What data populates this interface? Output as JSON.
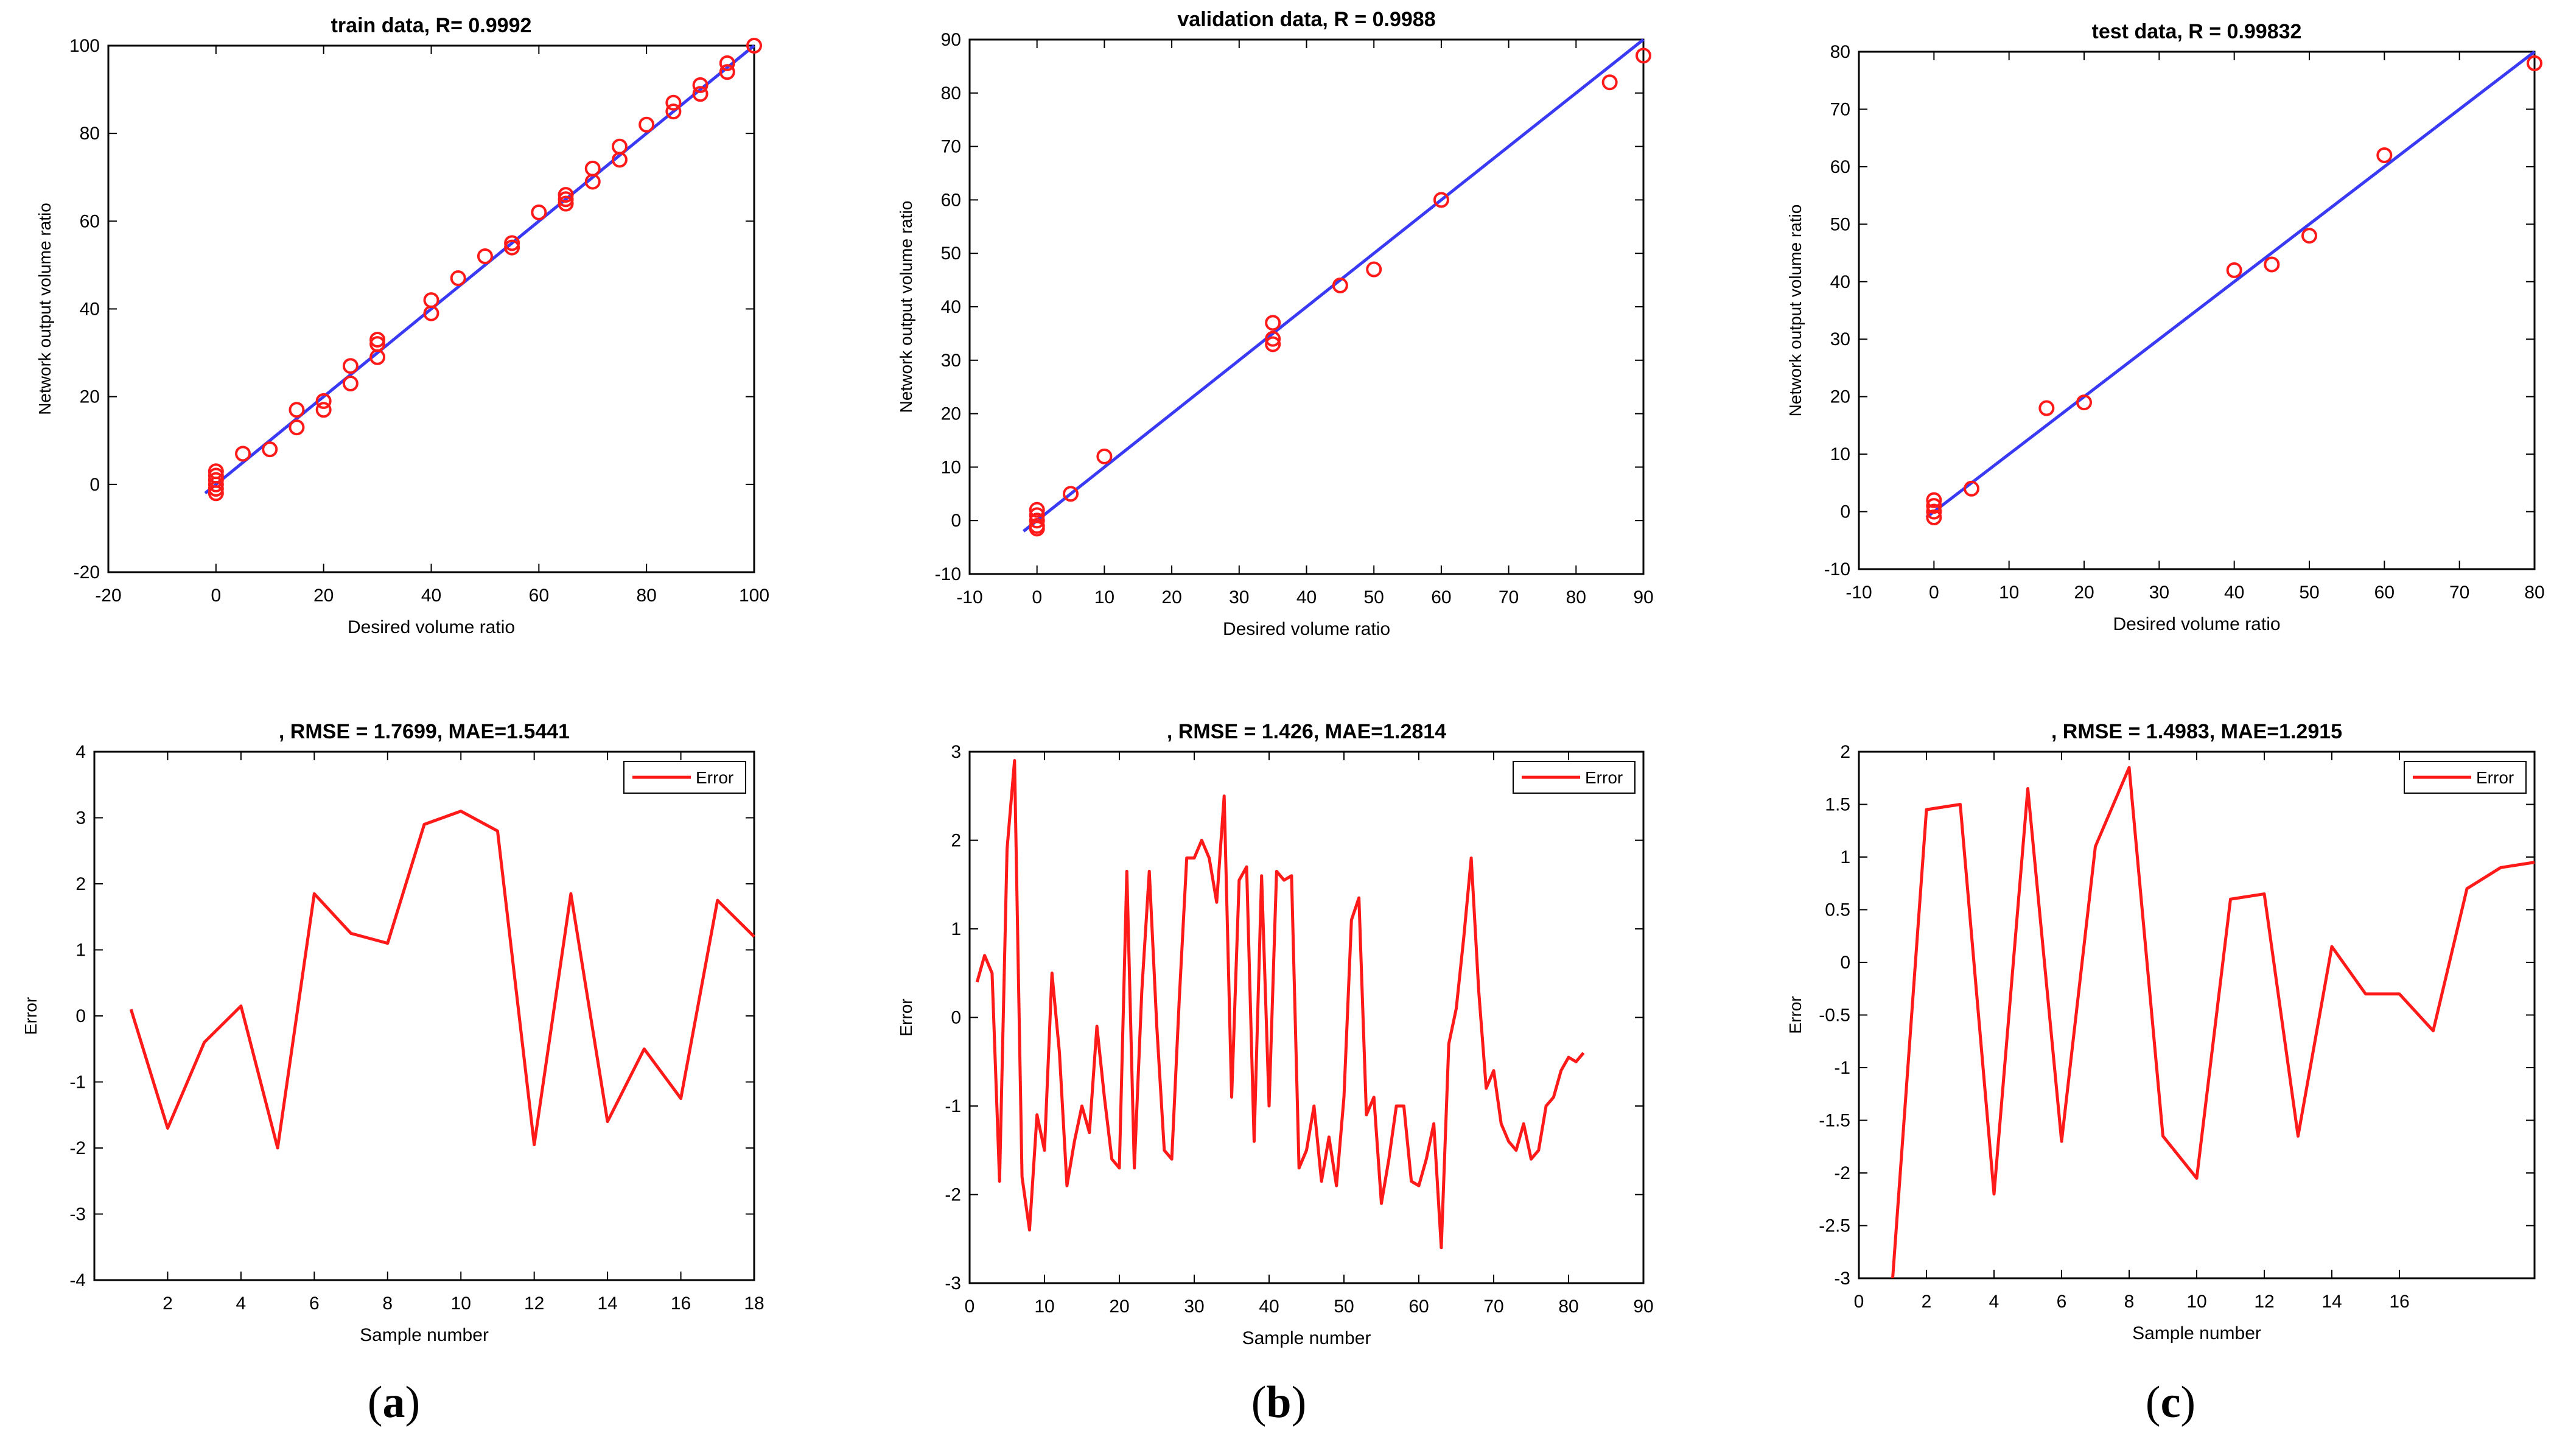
{
  "colors": {
    "fit_line": "#3a3af5",
    "points": "#ff1a1a",
    "error_line": "#ff1a1a",
    "axis": "#000000"
  },
  "panel_labels": [
    "a",
    "b",
    "c"
  ],
  "chart_data": [
    {
      "type": "scatter",
      "panel": "a-top",
      "title": "train data,  R= 0.9992",
      "xlabel": "Desired volume ratio",
      "ylabel": "Network output volume ratio",
      "xlim": [
        -20,
        100
      ],
      "ylim": [
        -20,
        100
      ],
      "xticks": [
        -20,
        0,
        20,
        40,
        60,
        80,
        100
      ],
      "yticks": [
        -20,
        0,
        20,
        40,
        60,
        80,
        100
      ],
      "fit_line": {
        "x": [
          -2,
          100
        ],
        "y": [
          -2,
          100
        ]
      },
      "points": [
        [
          0,
          -1
        ],
        [
          0,
          0
        ],
        [
          0,
          1
        ],
        [
          0,
          2
        ],
        [
          0,
          3
        ],
        [
          0,
          -2
        ],
        [
          5,
          7
        ],
        [
          10,
          8
        ],
        [
          15,
          13
        ],
        [
          15,
          17
        ],
        [
          20,
          17
        ],
        [
          20,
          19
        ],
        [
          25,
          23
        ],
        [
          25,
          27
        ],
        [
          30,
          29
        ],
        [
          30,
          32
        ],
        [
          30,
          33
        ],
        [
          40,
          39
        ],
        [
          40,
          42
        ],
        [
          45,
          47
        ],
        [
          50,
          52
        ],
        [
          55,
          54
        ],
        [
          55,
          55
        ],
        [
          60,
          62
        ],
        [
          65,
          64
        ],
        [
          65,
          65
        ],
        [
          65,
          66
        ],
        [
          70,
          69
        ],
        [
          70,
          72
        ],
        [
          75,
          74
        ],
        [
          75,
          77
        ],
        [
          80,
          82
        ],
        [
          85,
          85
        ],
        [
          85,
          87
        ],
        [
          90,
          89
        ],
        [
          90,
          91
        ],
        [
          95,
          94
        ],
        [
          95,
          96
        ],
        [
          100,
          100
        ]
      ]
    },
    {
      "type": "scatter",
      "panel": "b-top",
      "title": "validation data,  R = 0.9988",
      "xlabel": "Desired volume ratio",
      "ylabel": "Network output volume ratio",
      "xlim": [
        -10,
        90
      ],
      "ylim": [
        -10,
        90
      ],
      "xticks": [
        -10,
        0,
        10,
        20,
        30,
        40,
        50,
        60,
        70,
        80,
        90
      ],
      "yticks": [
        -10,
        0,
        10,
        20,
        30,
        40,
        50,
        60,
        70,
        80,
        90
      ],
      "fit_line": {
        "x": [
          -2,
          90
        ],
        "y": [
          -2,
          90
        ]
      },
      "points": [
        [
          0,
          -1.5
        ],
        [
          0,
          -1
        ],
        [
          0,
          0
        ],
        [
          0,
          1
        ],
        [
          0,
          2
        ],
        [
          5,
          5
        ],
        [
          10,
          12
        ],
        [
          35,
          33
        ],
        [
          35,
          34
        ],
        [
          35,
          37
        ],
        [
          45,
          44
        ],
        [
          50,
          47
        ],
        [
          60,
          60
        ],
        [
          85,
          82
        ],
        [
          90,
          87
        ]
      ]
    },
    {
      "type": "scatter",
      "panel": "c-top",
      "title": "test data,  R = 0.99832",
      "xlabel": "Desired volume ratio",
      "ylabel": "Network output volume ratio",
      "xlim": [
        -10,
        80
      ],
      "ylim": [
        -10,
        80
      ],
      "xticks": [
        -10,
        0,
        10,
        20,
        30,
        40,
        50,
        60,
        70,
        80
      ],
      "yticks": [
        -10,
        0,
        10,
        20,
        30,
        40,
        50,
        60,
        70,
        80
      ],
      "fit_line": {
        "x": [
          -1,
          80
        ],
        "y": [
          -1,
          80
        ]
      },
      "points": [
        [
          0,
          -1
        ],
        [
          0,
          0
        ],
        [
          0,
          1
        ],
        [
          0,
          2
        ],
        [
          5,
          4
        ],
        [
          15,
          18
        ],
        [
          20,
          19
        ],
        [
          40,
          42
        ],
        [
          45,
          43
        ],
        [
          50,
          48
        ],
        [
          60,
          62
        ],
        [
          80,
          78
        ]
      ]
    },
    {
      "type": "line",
      "panel": "a-bottom",
      "title": ", RMSE = 1.7699, MAE=1.5441",
      "xlabel": "Sample number",
      "ylabel": "Error",
      "legend": "Error",
      "xlim": [
        0,
        18
      ],
      "ylim": [
        -4,
        4
      ],
      "xticks": [
        2,
        4,
        6,
        8,
        10,
        12,
        14,
        16,
        18
      ],
      "yticks": [
        -4,
        -3,
        -2,
        -1,
        0,
        1,
        2,
        3,
        4
      ],
      "x": [
        1,
        2,
        3,
        4,
        5,
        6,
        7,
        8,
        9,
        10,
        11,
        12,
        13,
        14,
        15,
        16,
        17,
        18
      ],
      "y": [
        0.1,
        -1.7,
        -0.4,
        0.15,
        -2.0,
        1.85,
        1.25,
        1.1,
        2.9,
        3.1,
        2.8,
        -1.95,
        1.85,
        -1.6,
        -0.5,
        -1.25,
        1.75,
        1.2
      ]
    },
    {
      "type": "line",
      "panel": "b-bottom",
      "title": ", RMSE = 1.426, MAE=1.2814",
      "xlabel": "Sample number",
      "ylabel": "Error",
      "legend": "Error",
      "xlim": [
        0,
        90
      ],
      "ylim": [
        -3,
        3
      ],
      "xticks": [
        0,
        10,
        20,
        30,
        40,
        50,
        60,
        70,
        80,
        90
      ],
      "yticks": [
        -3,
        -2,
        -1,
        0,
        1,
        2,
        3
      ],
      "x": [
        1,
        2,
        3,
        4,
        5,
        6,
        7,
        8,
        9,
        10,
        11,
        12,
        13,
        14,
        15,
        16,
        17,
        18,
        19,
        20,
        21,
        22,
        23,
        24,
        25,
        26,
        27,
        28,
        29,
        30,
        31,
        32,
        33,
        34,
        35,
        36,
        37,
        38,
        39,
        40,
        41,
        42,
        43,
        44,
        45,
        46,
        47,
        48,
        49,
        50,
        51,
        52,
        53,
        54,
        55,
        56,
        57,
        58,
        59,
        60,
        61,
        62,
        63,
        64,
        65,
        66,
        67,
        68,
        69,
        70,
        71,
        72,
        73,
        74,
        75,
        76,
        77,
        78,
        79,
        80,
        81,
        82
      ],
      "y": [
        0.4,
        0.7,
        0.5,
        -1.85,
        1.9,
        2.9,
        -1.8,
        -2.4,
        -1.1,
        -1.5,
        0.5,
        -0.4,
        -1.9,
        -1.4,
        -1.0,
        -1.3,
        -0.1,
        -0.9,
        -1.6,
        -1.7,
        1.65,
        -1.7,
        0.3,
        1.65,
        -0.1,
        -1.5,
        -1.6,
        0.2,
        1.8,
        1.8,
        2.0,
        1.8,
        1.3,
        2.5,
        -0.9,
        1.55,
        1.7,
        -1.4,
        1.6,
        -1.0,
        1.65,
        1.55,
        1.6,
        -1.7,
        -1.5,
        -1.0,
        -1.85,
        -1.35,
        -1.9,
        -0.9,
        1.1,
        1.35,
        -1.1,
        -0.9,
        -2.1,
        -1.6,
        -1.0,
        -1.0,
        -1.85,
        -1.9,
        -1.6,
        -1.2,
        -2.6,
        -0.3,
        0.1,
        0.9,
        1.8,
        0.3,
        -0.8,
        -0.6,
        -1.2,
        -1.4,
        -1.5,
        -1.2,
        -1.6,
        -1.5,
        -1.0,
        -0.9,
        -0.6,
        -0.45,
        -0.5,
        -0.4
      ]
    },
    {
      "type": "line",
      "panel": "c-bottom",
      "title": ", RMSE = 1.4983, MAE=1.2915",
      "xlabel": "Sample number",
      "ylabel": "Error",
      "legend": "Error",
      "xlim": [
        0,
        20
      ],
      "ylim": [
        -3,
        2
      ],
      "xticks": [
        0,
        2,
        4,
        6,
        8,
        10,
        12,
        14,
        16
      ],
      "yticks": [
        -3,
        -2.5,
        -2,
        -1.5,
        -1,
        -0.5,
        0,
        0.5,
        1,
        1.5,
        2
      ],
      "x": [
        1,
        2,
        3,
        4,
        5,
        6,
        7,
        8,
        9,
        10,
        11,
        12,
        13,
        14,
        15,
        16,
        17,
        18,
        19,
        20
      ],
      "y": [
        -3.0,
        1.45,
        1.5,
        -2.2,
        1.65,
        -1.7,
        1.1,
        1.85,
        -1.65,
        -2.05,
        0.6,
        0.65,
        -1.65,
        0.15,
        -0.3,
        -0.3,
        -0.65,
        0.7,
        0.9,
        0.95
      ]
    }
  ]
}
